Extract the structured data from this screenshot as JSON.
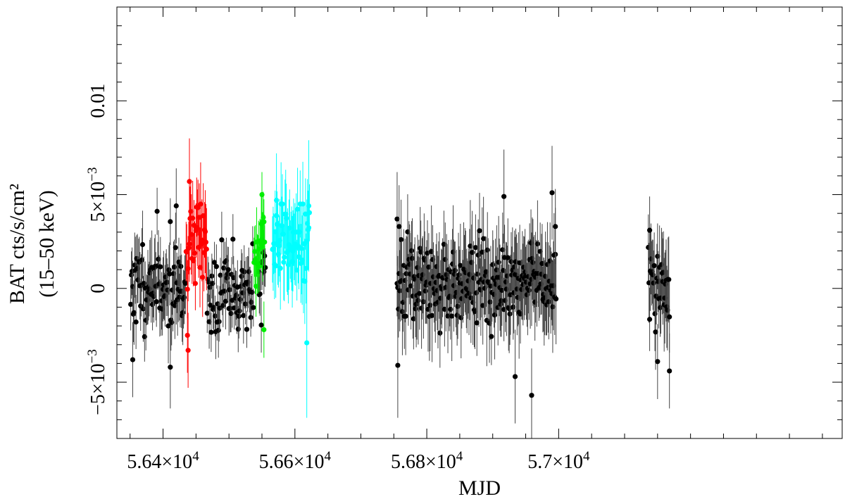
{
  "chart_data": {
    "type": "scatter",
    "title": "",
    "xlabel": "MJD",
    "ylabel_line1": "BAT cts/s/cm²",
    "ylabel_line2": "(15–50 keV)",
    "xlim": [
      56330,
      57430
    ],
    "ylim": [
      -0.008,
      0.015
    ],
    "x_ticks": [
      {
        "value": 56400,
        "label_mantissa": "5.64×10",
        "label_exp": "4"
      },
      {
        "value": 56600,
        "label_mantissa": "5.66×10",
        "label_exp": "4"
      },
      {
        "value": 56800,
        "label_mantissa": "5.68×10",
        "label_exp": "4"
      },
      {
        "value": 57000,
        "label_mantissa": "5.7×10",
        "label_exp": "4"
      }
    ],
    "y_ticks": [
      {
        "value": -0.005,
        "label_mantissa": "−5×10",
        "label_exp": "−3"
      },
      {
        "value": 0,
        "label_mantissa": "0",
        "label_exp": ""
      },
      {
        "value": 0.005,
        "label_mantissa": "5×10",
        "label_exp": "−3"
      },
      {
        "value": 0.01,
        "label_mantissa": "0.01",
        "label_exp": ""
      }
    ],
    "grid": false,
    "legend": "none",
    "series": [
      {
        "color": "#000000",
        "segments": [
          {
            "start": 56351,
            "end": 56434,
            "step": 1.0,
            "mean": 0.0002,
            "err": 0.0016,
            "seed": 11
          },
          {
            "start": 56467,
            "end": 56537,
            "step": 1.0,
            "mean": 0.0001,
            "err": 0.0012,
            "seed": 23
          },
          {
            "start": 56545,
            "end": 56555,
            "step": 1.0,
            "mean": 0.0003,
            "err": 0.0013,
            "seed": 37
          },
          {
            "start": 56755,
            "end": 56996,
            "step": 1.0,
            "mean": 0.0002,
            "err": 0.002,
            "seed": 41
          },
          {
            "start": 57136,
            "end": 57168,
            "step": 1.0,
            "mean": 0.0003,
            "err": 0.002,
            "seed": 53
          }
        ],
        "highlights": [
          {
            "x": 56420,
            "y": 0.0044,
            "err": 0.002
          },
          {
            "x": 56354,
            "y": -0.0038,
            "err": 0.002
          },
          {
            "x": 56411,
            "y": -0.0042,
            "err": 0.0022
          },
          {
            "x": 56755,
            "y": 0.0037,
            "err": 0.0025
          },
          {
            "x": 56756,
            "y": -0.0041,
            "err": 0.0028
          },
          {
            "x": 56758,
            "y": 0.0033,
            "err": 0.0022
          },
          {
            "x": 56917,
            "y": 0.0049,
            "err": 0.0025
          },
          {
            "x": 56959,
            "y": -0.0057,
            "err": 0.0025
          },
          {
            "x": 56934,
            "y": -0.0047,
            "err": 0.0025
          },
          {
            "x": 56990,
            "y": 0.0051,
            "err": 0.0025
          },
          {
            "x": 56995,
            "y": 0.0033,
            "err": 0.002
          },
          {
            "x": 57168,
            "y": -0.0044,
            "err": 0.002
          },
          {
            "x": 57150,
            "y": -0.0039,
            "err": 0.002
          },
          {
            "x": 57138,
            "y": 0.0031,
            "err": 0.0018
          }
        ]
      },
      {
        "color": "#ff0000",
        "segments": [
          {
            "start": 56435,
            "end": 56466,
            "step": 1.0,
            "mean": 0.0025,
            "err": 0.0018,
            "seed": 67
          }
        ],
        "highlights": [
          {
            "x": 56440,
            "y": 0.0057,
            "err": 0.0023
          },
          {
            "x": 56438,
            "y": -0.0033,
            "err": 0.002
          },
          {
            "x": 56437,
            "y": -0.0025,
            "err": 0.002
          }
        ]
      },
      {
        "color": "#00ee00",
        "segments": [
          {
            "start": 56538,
            "end": 56554,
            "step": 1.0,
            "mean": 0.0022,
            "err": 0.0015,
            "seed": 71
          }
        ],
        "highlights": [
          {
            "x": 56550,
            "y": 0.005,
            "err": 0.0012
          },
          {
            "x": 56553,
            "y": -0.0022,
            "err": 0.0015
          }
        ]
      },
      {
        "color": "#00ffff",
        "segments": [
          {
            "start": 56566,
            "end": 56622,
            "step": 1.0,
            "mean": 0.0025,
            "err": 0.002,
            "seed": 83
          }
        ],
        "highlights": [
          {
            "x": 56618,
            "y": -0.0029,
            "err": 0.004
          },
          {
            "x": 56621,
            "y": 0.0044,
            "err": 0.0035
          },
          {
            "x": 56572,
            "y": 0.0047,
            "err": 0.0025
          }
        ]
      }
    ]
  }
}
